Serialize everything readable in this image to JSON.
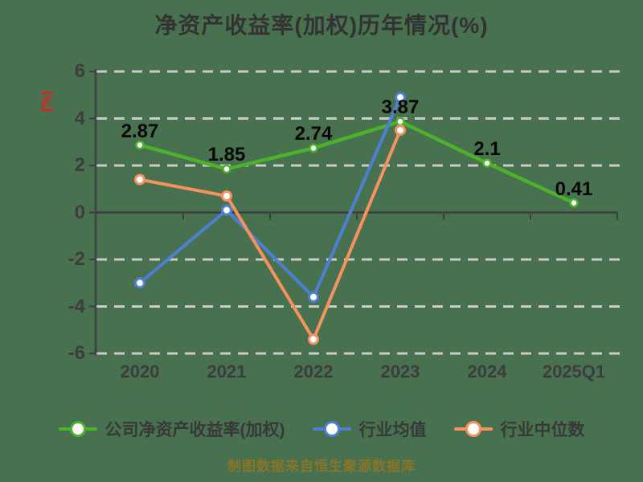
{
  "title": "净资产收益率(加权)历年情况(%)",
  "y_axis_unit": "(%)",
  "footer": "制图数据来自恒生聚源数据库",
  "colors": {
    "background": "#487150",
    "grid": "#cbcbcb",
    "axis": "#3f3f3f",
    "title_text": "#333333",
    "tick_text": "#3d3d3d",
    "data_label_text": "#060606",
    "y_unit_text": "#e22020",
    "footer_text": "#8a7428",
    "company": "#4bb229",
    "industry_mean": "#4d7fd3",
    "industry_median": "#f5925e"
  },
  "chart_data": {
    "type": "line",
    "categories": [
      "2020",
      "2021",
      "2022",
      "2023",
      "2024",
      "2025Q1"
    ],
    "series": [
      {
        "name": "公司净资产收益率(加权)",
        "color": "#4bb229",
        "values": [
          2.87,
          1.85,
          2.74,
          3.87,
          2.1,
          0.41
        ],
        "point_labels": [
          "2.87",
          "1.85",
          "2.74",
          "3.87",
          "2.1",
          "0.41"
        ]
      },
      {
        "name": "行业均值",
        "color": "#4d7fd3",
        "values": [
          -3.0,
          0.1,
          -3.6,
          4.9
        ],
        "point_labels": []
      },
      {
        "name": "行业中位数",
        "color": "#f5925e",
        "values": [
          1.4,
          0.7,
          -5.4,
          3.5
        ],
        "point_labels": []
      }
    ],
    "title": "净资产收益率(加权)历年情况(%)",
    "xlabel": "",
    "ylabel": "(%)",
    "ylim": [
      -6,
      6
    ],
    "yticks": [
      6,
      4,
      2,
      0,
      -2,
      -4,
      -6
    ],
    "grid": "horizontal-dashed",
    "legend_position": "bottom"
  }
}
